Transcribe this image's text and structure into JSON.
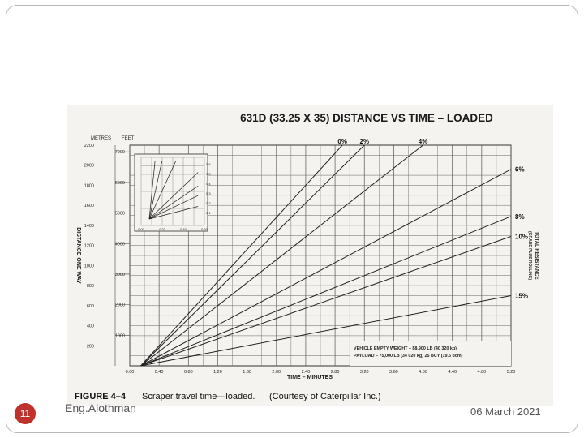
{
  "slide": {
    "number": "11",
    "footer_left": "Eng.Alothman",
    "footer_right": "06 March 2021"
  },
  "chart_data": {
    "type": "line",
    "title": "631D (33.25 X 35) DISTANCE VS TIME – LOADED",
    "caption_label": "FIGURE 4–4",
    "caption_text": "Scraper travel time—loaded.",
    "caption_credit": "(Courtesy of Caterpillar Inc.)",
    "xlabel": "TIME – MINUTES",
    "ylabel": "DISTANCE ONE WAY",
    "ylabel_right_1": "TOTAL RESISTANCE",
    "ylabel_right_2": "(GRADE PLUS ROLLING)",
    "metres_header": "METRES",
    "feet_header": "FEET",
    "xlim": [
      0,
      5.2
    ],
    "ylim": [
      0,
      2200
    ],
    "x_ticks": [
      "0.00",
      "0.40",
      "0.80",
      "1.20",
      "1.60",
      "2.00",
      "2.40",
      "2.80",
      "3.20",
      "3.60",
      "4.00",
      "4.40",
      "4.80",
      "5.20"
    ],
    "y_ticks_metres": [
      "200",
      "400",
      "600",
      "800",
      "1000",
      "1200",
      "1400",
      "1600",
      "1800",
      "2000",
      "2200"
    ],
    "y_ticks_feet": [
      "1000",
      "2000",
      "3000",
      "4000",
      "5000",
      "6000",
      "7000"
    ],
    "grid": true,
    "series": [
      {
        "name": "0%",
        "x": [
          0.15,
          2.9
        ],
        "y": [
          0,
          2200
        ]
      },
      {
        "name": "2%",
        "x": [
          0.15,
          3.2
        ],
        "y": [
          0,
          2200
        ]
      },
      {
        "name": "4%",
        "x": [
          0.15,
          4.0
        ],
        "y": [
          0,
          2200
        ]
      },
      {
        "name": "6%",
        "x": [
          0.15,
          5.2
        ],
        "y": [
          0,
          1960
        ]
      },
      {
        "name": "8%",
        "x": [
          0.15,
          5.2
        ],
        "y": [
          0,
          1490
        ]
      },
      {
        "name": "10%",
        "x": [
          0.15,
          5.2
        ],
        "y": [
          0,
          1290
        ]
      },
      {
        "name": "15%",
        "x": [
          0.15,
          5.2
        ],
        "y": [
          0,
          700
        ]
      }
    ],
    "annotation_1": "VEHICLE EMPTY WEIGHT – 88,900 LB (40 320 kg)",
    "annotation_2": "PAYLOAD – 75,000 LB (34 020 kg) 25 BCY (19.6 bcm)",
    "inset": {
      "x_ticks": [
        "0.00",
        "0.20",
        "0.40",
        "0.60"
      ],
      "y_ticks": [
        "0.6",
        "0.5",
        "0.4",
        "0.3",
        "0.2",
        "0.1"
      ]
    }
  }
}
